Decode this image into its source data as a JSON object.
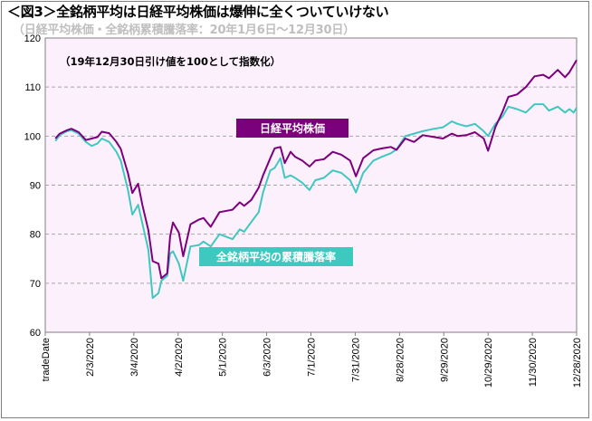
{
  "header": {
    "title": "＜図3＞全銘柄平均は日経平均株価は爆伸に全くついていけない",
    "subtitle": "（日経平均株価・全銘柄累積騰落率：20年1月6日～12月30日）"
  },
  "chart_data": {
    "type": "line",
    "note": "（19年12月30日引け値を100として指数化）",
    "xlabel": "",
    "ylabel": "",
    "ylim": [
      60,
      120
    ],
    "yticks": [
      60,
      70,
      80,
      90,
      100,
      110,
      120
    ],
    "xticks": [
      "tradeDate",
      "2/3/2020",
      "3/4/2020",
      "4/2/2020",
      "5/1/2020",
      "6/3/2020",
      "7/1/2020",
      "7/31/2020",
      "8/28/2020",
      "9/29/2020",
      "10/29/2020",
      "11/30/2020",
      "12/28/2020"
    ],
    "grid": "horizontal-dashed",
    "plot_background": "#fdf0fd",
    "series": [
      {
        "name": "日経平均株価",
        "color": "#7b007b",
        "x": [
          "1/6/2020",
          "1/9/2020",
          "1/14/2020",
          "1/17/2020",
          "1/22/2020",
          "1/27/2020",
          "1/31/2020",
          "2/4/2020",
          "2/7/2020",
          "2/12/2020",
          "2/17/2020",
          "2/20/2020",
          "2/25/2020",
          "2/28/2020",
          "3/3/2020",
          "3/6/2020",
          "3/10/2020",
          "3/13/2020",
          "3/17/2020",
          "3/19/2020",
          "3/23/2020",
          "3/25/2020",
          "3/27/2020",
          "3/31/2020",
          "4/3/2020",
          "4/8/2020",
          "4/14/2020",
          "4/17/2020",
          "4/22/2020",
          "4/28/2020",
          "5/7/2020",
          "5/12/2020",
          "5/15/2020",
          "5/20/2020",
          "5/25/2020",
          "5/28/2020",
          "6/2/2020",
          "6/5/2020",
          "6/9/2020",
          "6/12/2020",
          "6/16/2020",
          "6/19/2020",
          "6/24/2020",
          "6/29/2020",
          "7/3/2020",
          "7/9/2020",
          "7/15/2020",
          "7/21/2020",
          "7/27/2020",
          "7/31/2020",
          "8/5/2020",
          "8/12/2020",
          "8/18/2020",
          "8/24/2020",
          "8/28/2020",
          "9/3/2020",
          "9/9/2020",
          "9/15/2020",
          "9/23/2020",
          "9/29/2020",
          "10/5/2020",
          "10/9/2020",
          "10/15/2020",
          "10/21/2020",
          "10/27/2020",
          "10/30/2020",
          "11/4/2020",
          "11/9/2020",
          "11/13/2020",
          "11/19/2020",
          "11/25/2020",
          "12/1/2020",
          "12/7/2020",
          "12/11/2020",
          "12/17/2020",
          "12/22/2020",
          "12/25/2020",
          "12/28/2020",
          "12/30/2020"
        ],
        "y": [
          99.5,
          100.5,
          101.2,
          101.5,
          100.8,
          99.2,
          99.5,
          99.8,
          100.9,
          100.6,
          98.8,
          97.4,
          92.4,
          88.4,
          90.3,
          85.8,
          80.8,
          74.5,
          74.0,
          71.0,
          72.0,
          79.5,
          82.4,
          80.3,
          75.5,
          82.0,
          83.0,
          83.3,
          81.5,
          84.5,
          85.0,
          86.5,
          85.8,
          87.0,
          89.5,
          92.0,
          95.5,
          97.5,
          97.8,
          94.5,
          96.8,
          95.8,
          95.0,
          93.8,
          95.0,
          95.3,
          96.8,
          96.2,
          95.0,
          91.8,
          95.5,
          97.1,
          97.5,
          97.8,
          97.2,
          99.5,
          98.8,
          100.2,
          99.8,
          99.5,
          100.5,
          100.0,
          100.2,
          100.8,
          99.5,
          97.0,
          101.8,
          105.0,
          108.0,
          108.5,
          110.0,
          112.2,
          112.5,
          111.8,
          113.5,
          112.0,
          113.0,
          114.5,
          115.5
        ]
      },
      {
        "name": "全銘柄平均の累積騰落率",
        "color": "#3ec8c0",
        "x": [
          "1/6/2020",
          "1/9/2020",
          "1/14/2020",
          "1/17/2020",
          "1/22/2020",
          "1/27/2020",
          "1/31/2020",
          "2/4/2020",
          "2/7/2020",
          "2/12/2020",
          "2/17/2020",
          "2/20/2020",
          "2/25/2020",
          "2/28/2020",
          "3/3/2020",
          "3/6/2020",
          "3/10/2020",
          "3/13/2020",
          "3/17/2020",
          "3/19/2020",
          "3/23/2020",
          "3/25/2020",
          "3/27/2020",
          "3/31/2020",
          "4/3/2020",
          "4/8/2020",
          "4/14/2020",
          "4/17/2020",
          "4/22/2020",
          "4/28/2020",
          "5/7/2020",
          "5/12/2020",
          "5/15/2020",
          "5/20/2020",
          "5/25/2020",
          "5/28/2020",
          "6/2/2020",
          "6/5/2020",
          "6/9/2020",
          "6/12/2020",
          "6/16/2020",
          "6/19/2020",
          "6/24/2020",
          "6/29/2020",
          "7/3/2020",
          "7/9/2020",
          "7/15/2020",
          "7/21/2020",
          "7/27/2020",
          "7/31/2020",
          "8/5/2020",
          "8/12/2020",
          "8/18/2020",
          "8/24/2020",
          "8/28/2020",
          "9/3/2020",
          "9/9/2020",
          "9/15/2020",
          "9/23/2020",
          "9/29/2020",
          "10/5/2020",
          "10/9/2020",
          "10/15/2020",
          "10/21/2020",
          "10/27/2020",
          "10/30/2020",
          "11/4/2020",
          "11/9/2020",
          "11/13/2020",
          "11/19/2020",
          "11/25/2020",
          "12/1/2020",
          "12/7/2020",
          "12/11/2020",
          "12/17/2020",
          "12/22/2020",
          "12/25/2020",
          "12/28/2020",
          "12/30/2020"
        ],
        "y": [
          99.0,
          100.2,
          101.0,
          101.2,
          100.5,
          98.8,
          98.0,
          98.5,
          99.5,
          98.8,
          96.8,
          95.0,
          89.0,
          84.0,
          86.0,
          82.0,
          76.8,
          67.0,
          68.0,
          70.5,
          71.5,
          76.0,
          76.5,
          74.0,
          70.5,
          77.5,
          77.8,
          78.5,
          77.5,
          80.0,
          79.0,
          81.0,
          80.5,
          82.5,
          84.5,
          88.5,
          93.0,
          93.5,
          95.5,
          91.5,
          92.0,
          91.5,
          90.5,
          89.0,
          91.0,
          91.5,
          93.0,
          92.5,
          91.0,
          88.5,
          92.5,
          95.0,
          95.8,
          96.5,
          97.3,
          100.0,
          100.5,
          101.0,
          101.5,
          101.8,
          103.0,
          102.5,
          102.0,
          102.5,
          101.0,
          100.0,
          102.5,
          104.0,
          106.0,
          105.5,
          104.8,
          106.5,
          106.5,
          105.2,
          106.0,
          104.8,
          105.5,
          104.8,
          105.8
        ]
      }
    ]
  }
}
